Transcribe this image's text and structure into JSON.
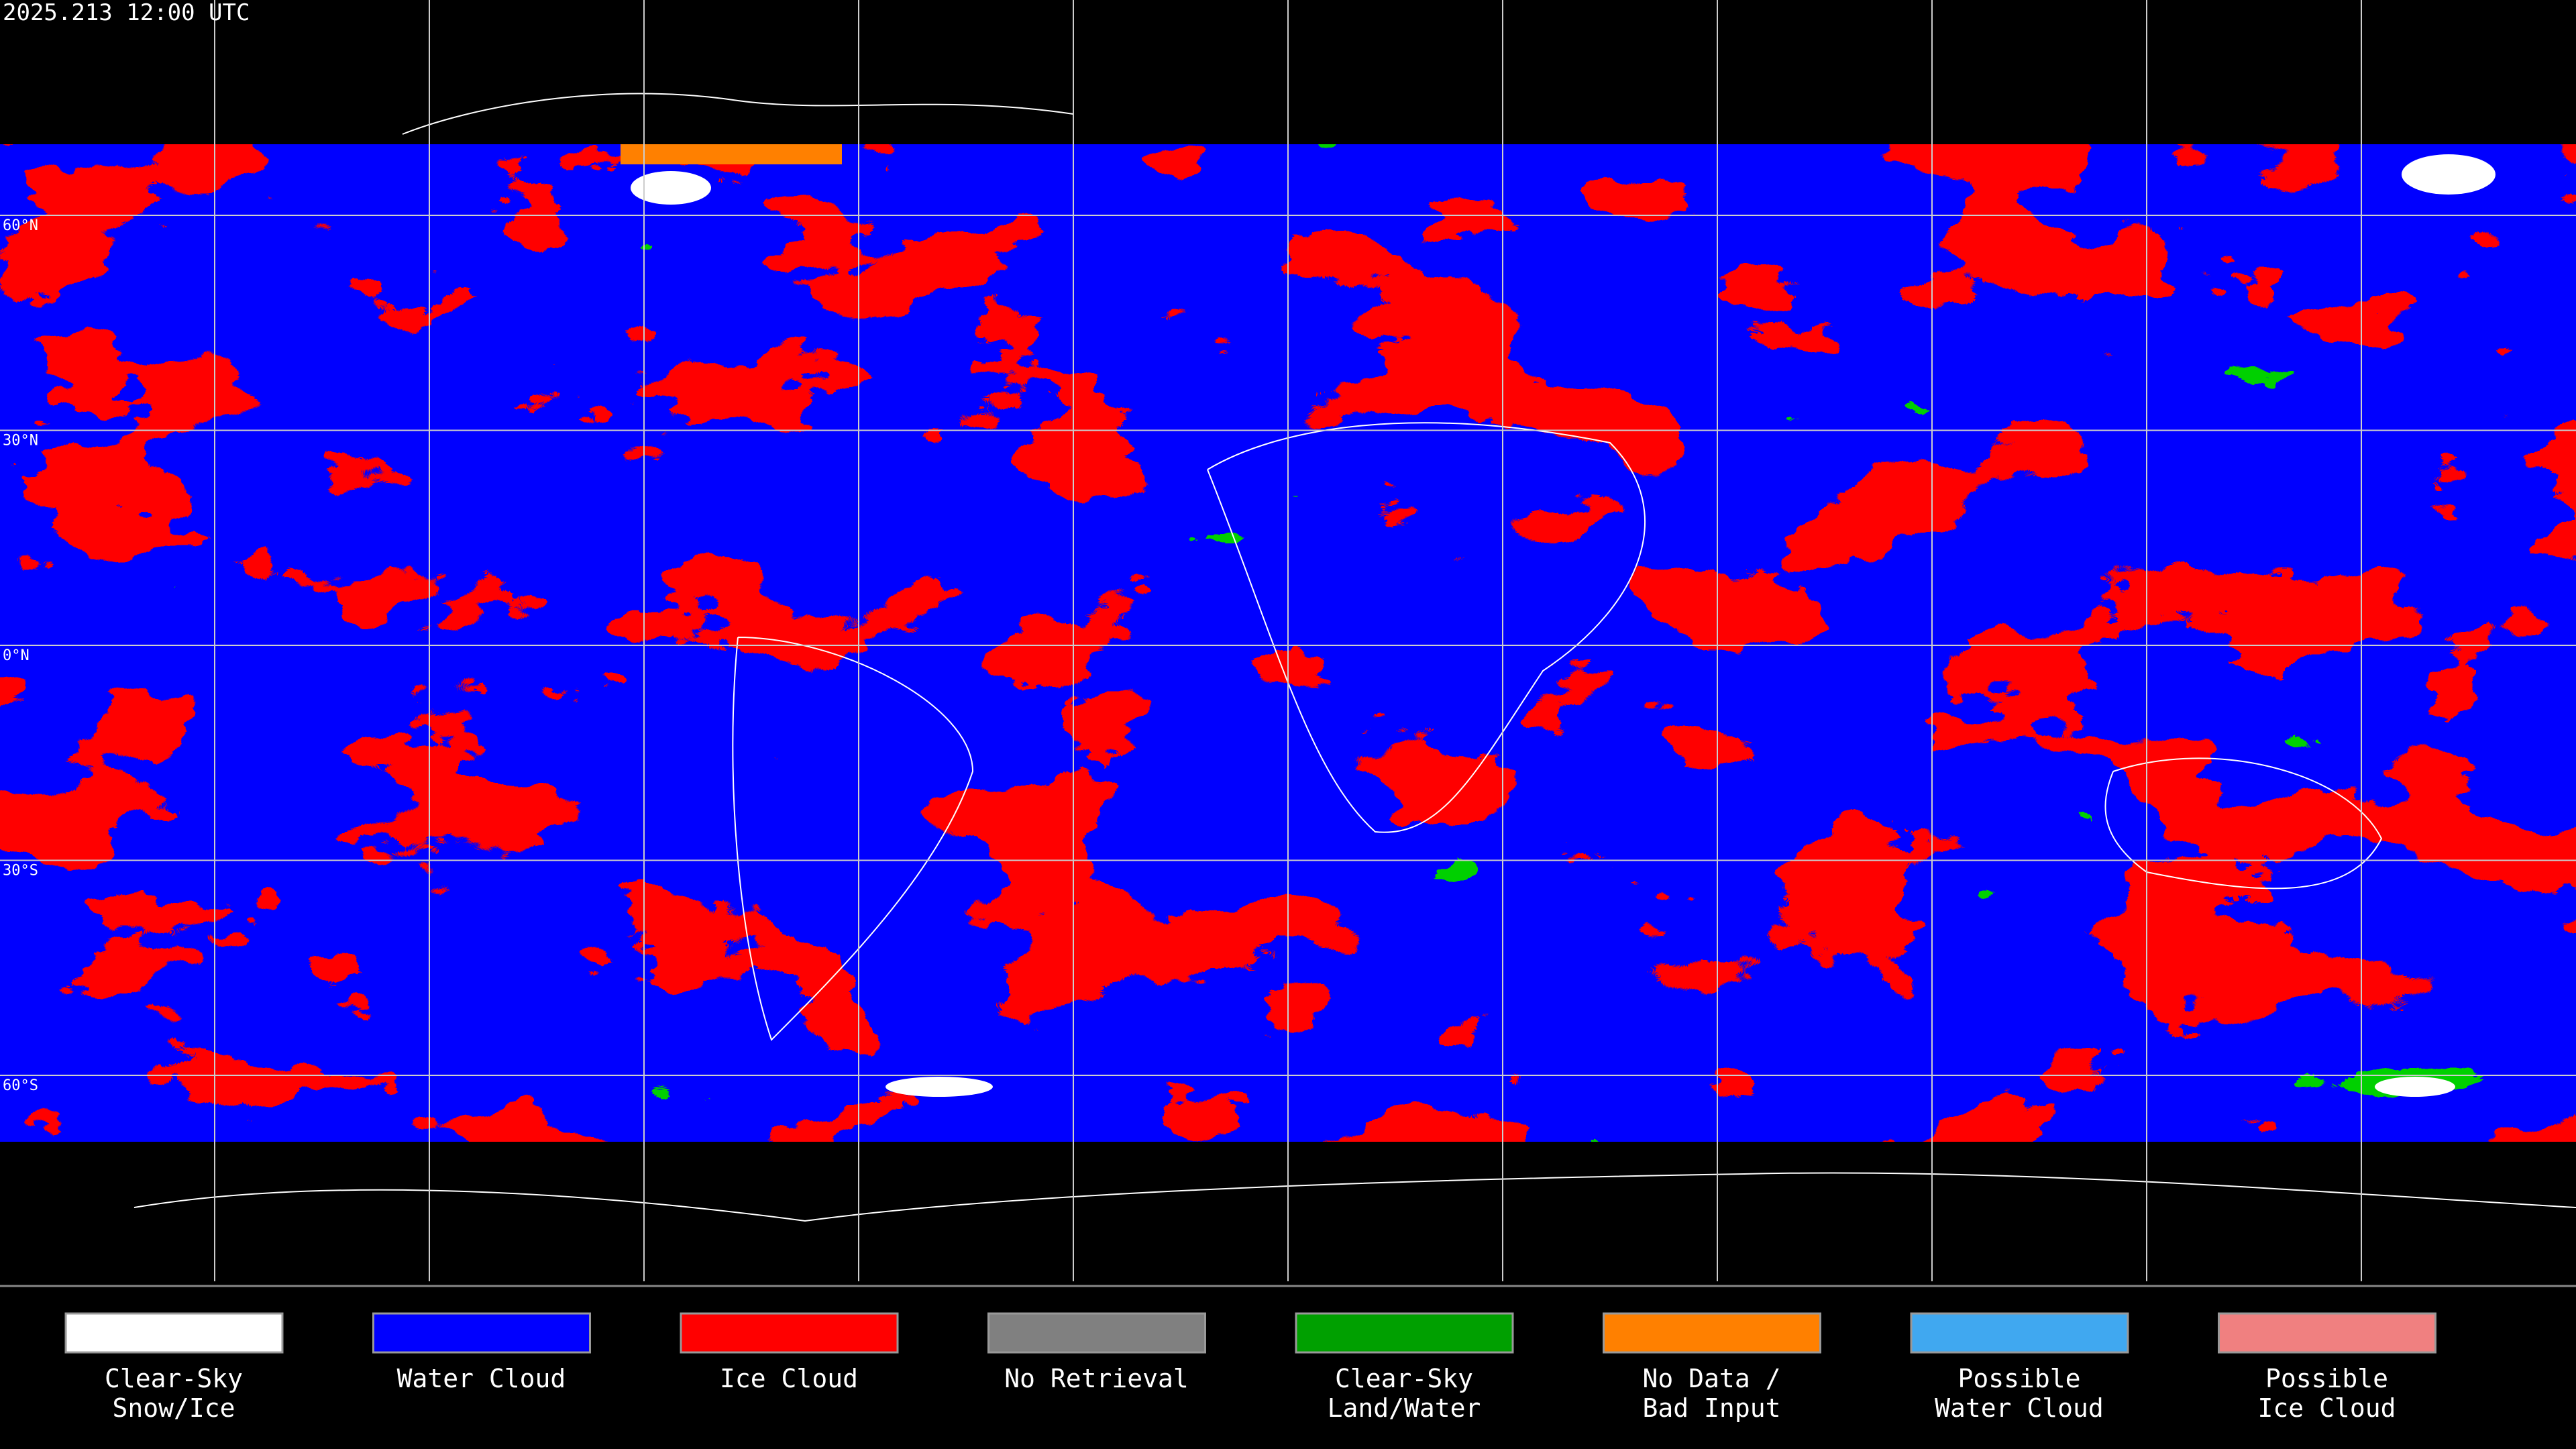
{
  "timestamp": "2025.213 12:00 UTC",
  "latitude_labels": [
    "60°N",
    "30°N",
    "0°N",
    "30°S",
    "60°S"
  ],
  "legend": [
    {
      "label": [
        "Clear-Sky",
        "Snow/Ice"
      ],
      "color": "#ffffff"
    },
    {
      "label": [
        "Water Cloud"
      ],
      "color": "#0000ff"
    },
    {
      "label": [
        "Ice Cloud"
      ],
      "color": "#ff0000"
    },
    {
      "label": [
        "No Retrieval"
      ],
      "color": "#808080"
    },
    {
      "label": [
        "Clear-Sky",
        "Land/Water"
      ],
      "color": "#00a000"
    },
    {
      "label": [
        "No Data /",
        "Bad Input"
      ],
      "color": "#ff8000"
    },
    {
      "label": [
        "Possible",
        "Water Cloud"
      ],
      "color": "#40a8f0"
    },
    {
      "label": [
        "Possible",
        "Ice Cloud"
      ],
      "color": "#f08080"
    }
  ]
}
